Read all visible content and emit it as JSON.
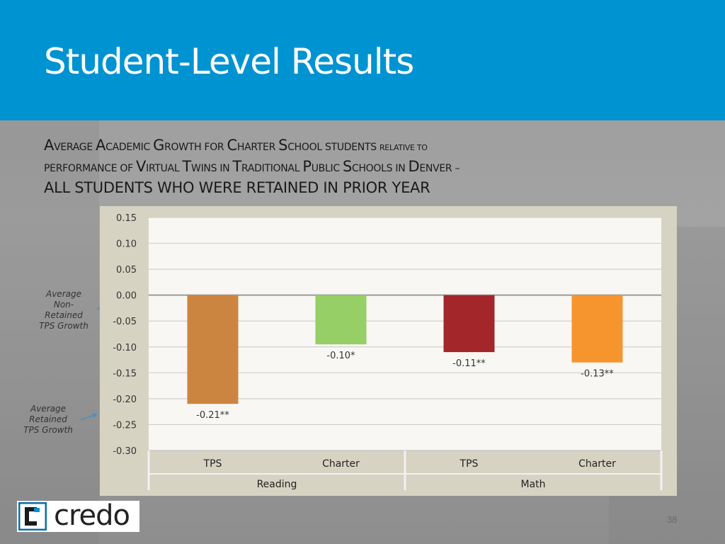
{
  "slide": {
    "title": "Student-Level Results",
    "subtitle": {
      "line1_a": "A",
      "line1_b": "VERAGE ",
      "line1_c": "A",
      "line1_d": "CADEMIC ",
      "line1_e": "G",
      "line1_f": "ROWTH FOR ",
      "line1_g": "C",
      "line1_h": "HARTER ",
      "line1_i": "S",
      "line1_j": "CHOOL STUDENTS ",
      "line1_k": "RELATIVE TO",
      "line2_a": "PERFORMANCE OF ",
      "line2_b": "V",
      "line2_c": "IRTUAL ",
      "line2_d": "T",
      "line2_e": "WINS IN ",
      "line2_f": "T",
      "line2_g": "RADITIONAL ",
      "line2_h": "P",
      "line2_i": "UBLIC ",
      "line2_j": "S",
      "line2_k": "CHOOLS IN ",
      "line2_l": "D",
      "line2_m": "ENVER –",
      "line3": "ALL STUDENTS WHO WERE RETAINED IN PRIOR YEAR"
    },
    "side_notes": {
      "non_retained": [
        "Average",
        "Non-",
        "Retained",
        "TPS Growth"
      ],
      "retained": [
        "Average",
        "Retained",
        "TPS Growth"
      ]
    },
    "logo_text": "credo",
    "page_number": "38",
    "colors": {
      "header": "#0093d1",
      "tps_reading": "#cc8540",
      "charter_reading": "#95cf65",
      "tps_math": "#a3262a",
      "charter_math": "#f6952e",
      "plot_bg": "#f8f7f3",
      "panel_bg": "#d7d3c3"
    }
  },
  "chart_data": {
    "type": "bar",
    "title": "",
    "xlabel": "",
    "ylabel": "",
    "ylim": [
      -0.3,
      0.15
    ],
    "yticks": [
      "0.15",
      "0.10",
      "0.05",
      "0.00",
      "-0.05",
      "-0.10",
      "-0.15",
      "-0.20",
      "-0.25",
      "-0.30"
    ],
    "ytick_values": [
      0.15,
      0.1,
      0.05,
      0.0,
      -0.05,
      -0.1,
      -0.15,
      -0.2,
      -0.25,
      -0.3
    ],
    "groups": [
      {
        "name": "Reading",
        "categories": [
          "TPS",
          "Charter"
        ]
      },
      {
        "name": "Math",
        "categories": [
          "TPS",
          "Charter"
        ]
      }
    ],
    "categories": [
      "TPS",
      "Charter",
      "TPS",
      "Charter"
    ],
    "values": [
      -0.21,
      -0.095,
      -0.11,
      -0.13
    ],
    "data_labels": [
      "-0.21**",
      "-0.10*",
      "-0.11**",
      "-0.13**"
    ],
    "grid": true
  }
}
